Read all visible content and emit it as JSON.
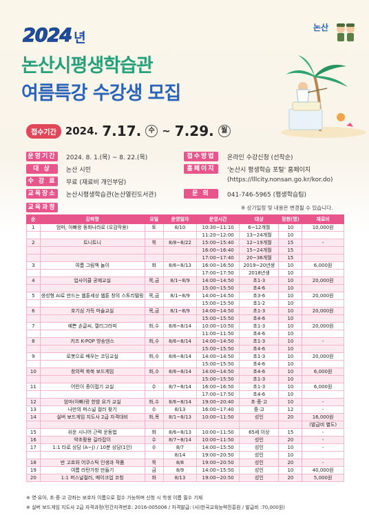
{
  "header": {
    "year": "2024",
    "year_suffix": "년",
    "title_line1": "논산시평생학습관",
    "title_line2": "여름특강 수강생 모집",
    "logo_text": "논산"
  },
  "period": {
    "label": "접수기간",
    "start_prefix": "2024.",
    "start_date": "7.17.",
    "start_day": "수",
    "sep": "~",
    "end_date": "7.29.",
    "end_day": "월"
  },
  "info": {
    "op_label": "운영기간",
    "op_value": "2024. 8. 1.(목) ~ 8. 22.(목)",
    "target_label": "대 상",
    "target_value": "논산 시민",
    "fee_label": "수 강 료",
    "fee_value": "무료 (재료비 개인부담)",
    "place_label": "교육장소",
    "place_value": "논산시평생학습관(논산열린도서관)",
    "apply_label": "접수방법",
    "apply_value": "온라인 수강신청 (선착순)",
    "home_label": "홈페이지",
    "home_value1": "'논산시 평생학습 포털' 홈페이지",
    "home_value2": "(https://lllcity.nonsan.go.kr/kor.do)",
    "contact_label": "문 의",
    "contact_value": "041-746-5965 (평생학습팀)",
    "course_label": "교육과정",
    "note": "※ 상기일정 및 내용은 변경될 수 있습니다."
  },
  "table": {
    "headers": [
      "순",
      "강좌명",
      "요일",
      "운영일자",
      "운영시간",
      "대상",
      "정원(명)",
      "재료비"
    ],
    "rows": [
      [
        "1",
        "엄마, 아빠랑 동화나라로 (오감작용)",
        "토",
        "8/10",
        "10:30~11:10",
        "6~12개월",
        "10",
        "10,000원"
      ],
      [
        "",
        "",
        "",
        "",
        "11:20~12:00",
        "13~24개월",
        "10",
        ""
      ],
      [
        "2",
        "트니트니",
        "목",
        "8/8~8/22",
        "15:00~15:40",
        "12~19개월",
        "15",
        "-"
      ],
      [
        "",
        "",
        "",
        "",
        "16:00~16:40",
        "15~24개월",
        "15",
        ""
      ],
      [
        "",
        "",
        "",
        "",
        "17:00~17:40",
        "20~36개월",
        "15",
        ""
      ],
      [
        "3",
        "여름 그림책 놀이",
        "화",
        "8/6~8/13",
        "16:00~16:50",
        "2019~20년생",
        "10",
        "6,000원"
      ],
      [
        "",
        "",
        "",
        "",
        "17:00~17:50",
        "2018년생",
        "10",
        ""
      ],
      [
        "4",
        "업사이클 공예교실",
        "목,금",
        "8/1~8/9",
        "14:00~14:50",
        "초1-3",
        "10",
        "20,000원"
      ],
      [
        "",
        "",
        "",
        "",
        "15:00~15:50",
        "초4-6",
        "10",
        ""
      ],
      [
        "5",
        "생성형 AI로 만드는 웹툰세상 웹툰 창의 스토리텔링",
        "목,금",
        "8/1~8/9",
        "14:00~14:50",
        "초3-6",
        "10",
        "20,000원"
      ],
      [
        "",
        "",
        "",
        "",
        "15:00~15:50",
        "초1-2",
        "10",
        ""
      ],
      [
        "6",
        "호기심 가득 마술교실",
        "목,금",
        "8/1~8/9",
        "14:00~14:50",
        "초1-3",
        "10",
        "20,000원"
      ],
      [
        "",
        "",
        "",
        "",
        "15:00~15:50",
        "초4-6",
        "10",
        ""
      ],
      [
        "7",
        "예쁜 손글씨, 캘리그라피",
        "화,수",
        "8/6~8/14",
        "10:00~10:50",
        "초1-3",
        "10",
        "20,000원"
      ],
      [
        "",
        "",
        "",
        "",
        "11:00~11:50",
        "초4-6",
        "10",
        ""
      ],
      [
        "8",
        "키즈 K-POP 방송댄스",
        "화,수",
        "8/6~8/14",
        "14:00~14:50",
        "초1-3",
        "10",
        "-"
      ],
      [
        "",
        "",
        "",
        "",
        "15:00~15:50",
        "초4-6",
        "10",
        ""
      ],
      [
        "9",
        "로봇으로 배우는 코딩교실",
        "화,수",
        "8/6~8/14",
        "14:00~14:50",
        "초1-3",
        "10",
        "20,000원"
      ],
      [
        "",
        "",
        "",
        "",
        "15:00~15:50",
        "초4-6",
        "10",
        ""
      ],
      [
        "10",
        "창의력 쑥쑥 보드게임",
        "화,수",
        "8/6~8/14",
        "14:00~14:50",
        "초4-6",
        "10",
        "6,000원"
      ],
      [
        "",
        "",
        "",
        "",
        "15:00~15:50",
        "초1-3",
        "10",
        ""
      ],
      [
        "11",
        "어린이 종이접기 교실",
        "수",
        "8/7~8/14",
        "16:00~16:50",
        "초1-3",
        "10",
        "6,000원"
      ],
      [
        "",
        "",
        "",
        "",
        "17:00~17:50",
        "초4-6",
        "10",
        ""
      ],
      [
        "12",
        "엄마(아빠)랑 한밤 요가 교실",
        "화,수",
        "8/6~8/14",
        "19:00~20:40",
        "초·중·고",
        "10",
        "-"
      ],
      [
        "13",
        "나만의 퍼스널 컬러 찾기",
        "수",
        "8/13",
        "16:00~17:40",
        "중·고",
        "12",
        "-"
      ],
      [
        "14",
        "실버 보드게임 지도사 2급 자격대비",
        "화,목",
        "8/1~8/13",
        "10:00~11:50",
        "성인",
        "20",
        "16,000원"
      ],
      [
        "",
        "",
        "",
        "",
        "",
        "",
        "",
        "(발급비 별도)"
      ],
      [
        "15",
        "쉬운 시니어 근력 운동법",
        "화",
        "8/6~8/13",
        "10:00~11:50",
        "65세 이상",
        "15",
        "-"
      ],
      [
        "16",
        "약초활용 길라잡이",
        "수",
        "8/7~8/14",
        "10:00~11:50",
        "성인",
        "20",
        "-"
      ],
      [
        "17",
        "1:1 타로 상담 (A~J) / 10분 상담(1인)",
        "수",
        "8/7",
        "14:00~15:50",
        "성인",
        "10",
        "-"
      ],
      [
        "",
        "",
        "",
        "8/14",
        "19:00~20:50",
        "성인",
        "10",
        ""
      ],
      [
        "18",
        "반 고흐와 어쿠스틱 인생과 작품",
        "목",
        "8/8",
        "19:00~20:50",
        "성인",
        "20",
        "-"
      ],
      [
        "19",
        "여름 라탄가방 만들기",
        "금",
        "8/9",
        "14:00~15:50",
        "성인",
        "10",
        "40,000원"
      ],
      [
        "20",
        "1:1 퍼스널컬러, 메이크업 코칭",
        "화",
        "8/13",
        "19:00~20:50",
        "성인",
        "20",
        "5,000원"
      ]
    ]
  },
  "footer": {
    "line1": "※ 영·유아, 초·중·고 강좌는 보호자 이름으로 접수 가능하며 신청 시 학생 이름 필수 기재",
    "line2": "※ 실버 보드게임 지도사 2급 자격과정(민간자격번호: 2016-005006 / 자격발급: (사)한국교육능력진흥원 / 발급비 :70,000원)"
  },
  "colors": {
    "accent_pink": "#e8558a",
    "title_green": "#25a07a",
    "title_blue": "#2a63b8",
    "period_red": "#e0485a"
  }
}
